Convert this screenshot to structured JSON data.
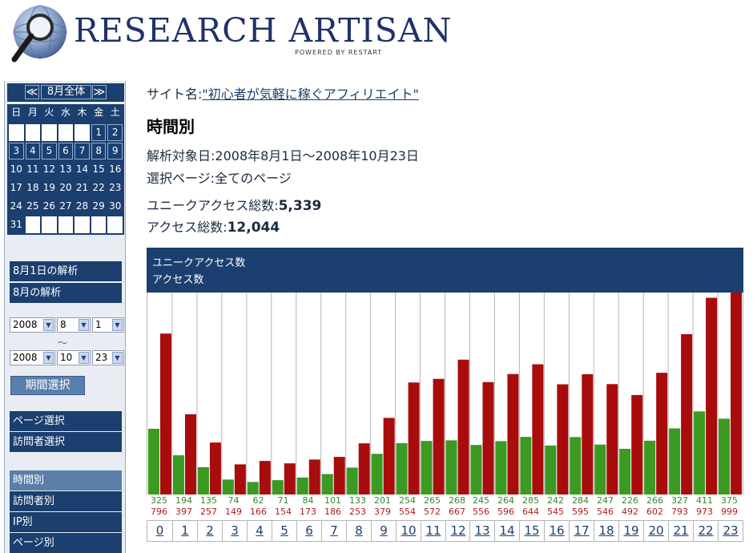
{
  "header": {
    "logo_text": "RESEARCH ARTISAN",
    "logo_subtitle": "POWERED BY RESTART"
  },
  "sidebar": {
    "calendar": {
      "prev": "≪",
      "month_label": "8月全体",
      "next": "≫",
      "weekdays": [
        "日",
        "月",
        "火",
        "水",
        "木",
        "金",
        "土"
      ],
      "days": [
        "1",
        "2",
        "3",
        "4",
        "5",
        "6",
        "7",
        "8",
        "9",
        "10",
        "11",
        "12",
        "13",
        "14",
        "15",
        "16",
        "17",
        "18",
        "19",
        "20",
        "21",
        "22",
        "23",
        "24",
        "25",
        "26",
        "27",
        "28",
        "29",
        "30",
        "31"
      ]
    },
    "day_analysis": "8月1日の解析",
    "month_analysis": "8月の解析",
    "range_start": {
      "year": "2008",
      "month": "8",
      "day": "1"
    },
    "range_tilde": "～",
    "range_end": {
      "year": "2008",
      "month": "10",
      "day": "23"
    },
    "period_button": "期間選択",
    "page_select": "ページ選択",
    "visitor_select": "訪問者選択",
    "menu": [
      "時間別",
      "訪問者別",
      "IP別",
      "ページ別"
    ]
  },
  "main": {
    "site_label": "サイト名:",
    "site_name": "\"初心者が気軽に稼ぐアフィリエイト\"",
    "title": "時間別",
    "period_label": "解析対象日:",
    "period_value": "2008年8月1日～2008年10月23日",
    "page_label": "選択ページ:",
    "page_value": "全てのページ",
    "unique_label": "ユニークアクセス総数:",
    "unique_value": "5,339",
    "total_label": "アクセス総数:",
    "total_value": "12,044"
  },
  "chart_data": {
    "type": "bar",
    "legend": [
      "ユニークアクセス数",
      "アクセス数"
    ],
    "colors": {
      "unique": "#3a9a22",
      "access": "#a80c0c"
    },
    "categories": [
      "0",
      "1",
      "2",
      "3",
      "4",
      "5",
      "6",
      "7",
      "8",
      "9",
      "10",
      "11",
      "12",
      "13",
      "14",
      "15",
      "16",
      "17",
      "18",
      "19",
      "20",
      "21",
      "22",
      "23"
    ],
    "series": [
      {
        "name": "ユニークアクセス数",
        "values": [
          325,
          194,
          135,
          74,
          62,
          71,
          84,
          101,
          133,
          201,
          254,
          265,
          268,
          245,
          264,
          285,
          242,
          284,
          247,
          226,
          266,
          327,
          411,
          375
        ]
      },
      {
        "name": "アクセス数",
        "values": [
          796,
          397,
          257,
          149,
          166,
          154,
          173,
          186,
          253,
          379,
          554,
          572,
          667,
          556,
          596,
          644,
          545,
          595,
          546,
          492,
          602,
          793,
          973,
          999
        ]
      }
    ],
    "ylim": [
      0,
      999
    ]
  }
}
